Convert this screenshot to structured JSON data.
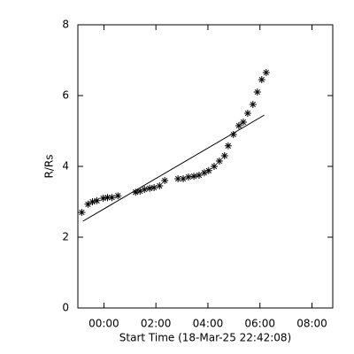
{
  "chart_data": {
    "type": "scatter",
    "xlabel": "Start Time (18-Mar-25 22:42:08)",
    "ylabel": "R/Rs",
    "xlim": [
      -1,
      8.8
    ],
    "ylim": [
      0,
      8
    ],
    "xticks": [
      {
        "value": 0,
        "label": "00:00"
      },
      {
        "value": 2,
        "label": "02:00"
      },
      {
        "value": 4,
        "label": "04:00"
      },
      {
        "value": 6,
        "label": "06:00"
      },
      {
        "value": 8,
        "label": "08:00"
      }
    ],
    "yticks": [
      0,
      2,
      4,
      6,
      8
    ],
    "color": "#000000",
    "x": [
      -0.85,
      -0.61,
      -0.44,
      -0.27,
      -0.03,
      0.14,
      0.31,
      0.54,
      1.22,
      1.39,
      1.56,
      1.76,
      1.93,
      2.14,
      2.34,
      2.85,
      3.05,
      3.25,
      3.46,
      3.66,
      3.86,
      4.03,
      4.24,
      4.44,
      4.64,
      4.78,
      4.98,
      5.19,
      5.36,
      5.53,
      5.73,
      5.9,
      6.07,
      6.24
    ],
    "values": [
      2.7,
      2.93,
      3.0,
      3.03,
      3.1,
      3.12,
      3.12,
      3.17,
      3.27,
      3.3,
      3.35,
      3.38,
      3.4,
      3.45,
      3.6,
      3.65,
      3.65,
      3.7,
      3.72,
      3.75,
      3.82,
      3.88,
      4.0,
      4.15,
      4.3,
      4.58,
      4.9,
      5.15,
      5.25,
      5.5,
      5.75,
      6.1,
      6.45,
      6.65
    ],
    "fit": {
      "x": [
        -0.81,
        6.17
      ],
      "values": [
        2.45,
        5.45
      ]
    }
  }
}
